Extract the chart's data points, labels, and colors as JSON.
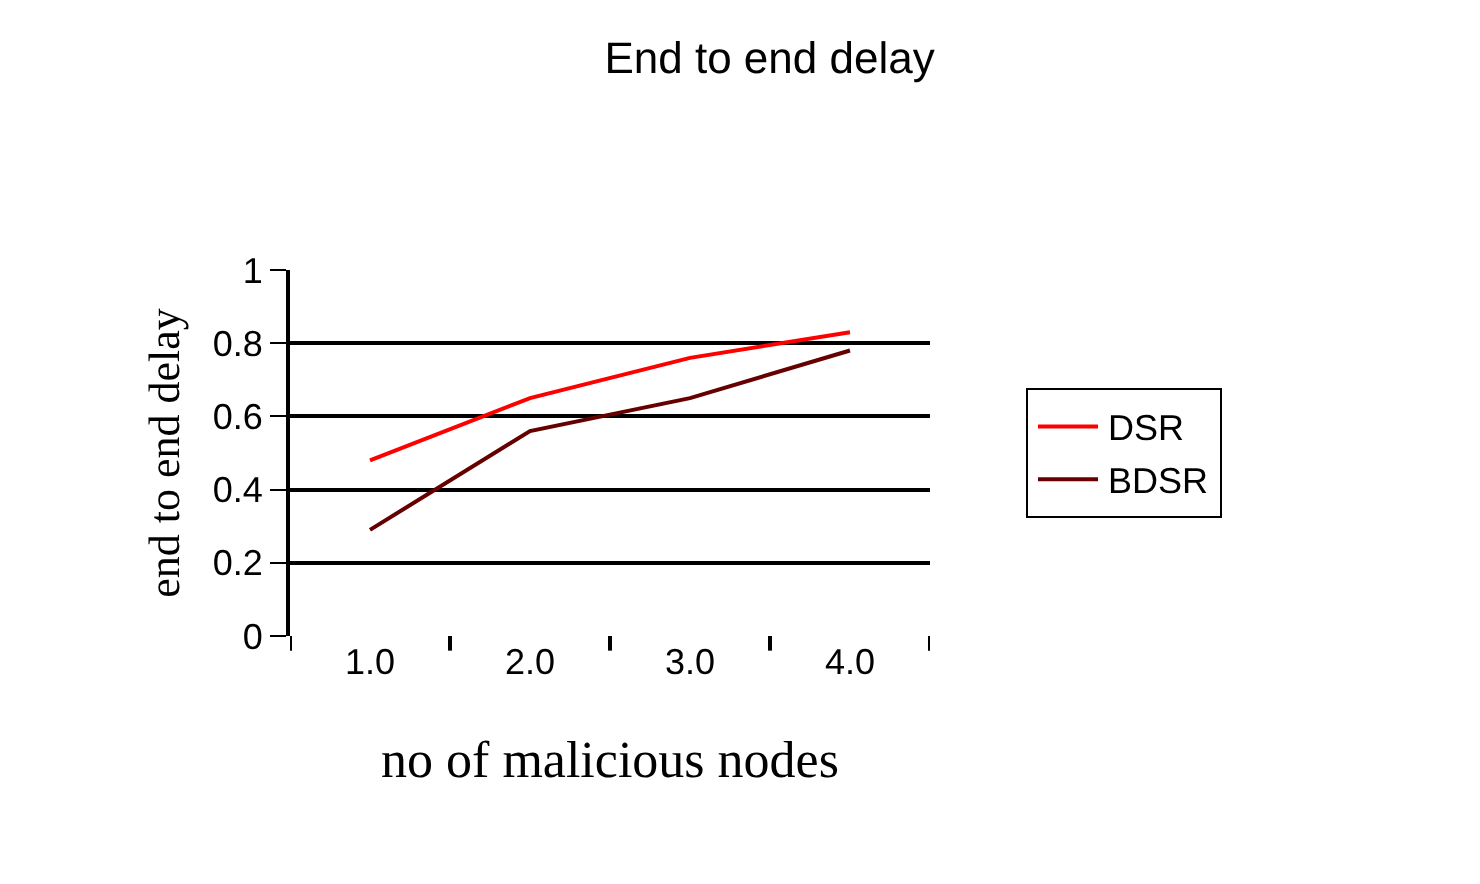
{
  "chart_data": {
    "type": "line",
    "title": "End to end delay",
    "xlabel": "no of malicious nodes",
    "ylabel": "end to end delay",
    "categories": [
      "1.0",
      "2.0",
      "3.0",
      "4.0"
    ],
    "series": [
      {
        "name": "DSR",
        "color": "#ff0000",
        "values": [
          0.48,
          0.65,
          0.76,
          0.83
        ]
      },
      {
        "name": "BDSR",
        "color": "#660000",
        "values": [
          0.29,
          0.56,
          0.65,
          0.78
        ]
      }
    ],
    "ylim": [
      0,
      1
    ],
    "yticks": [
      0,
      {
        "value": 0.2,
        "label": "0.2"
      },
      {
        "value": 0.4,
        "label": "0.4"
      },
      {
        "value": 0.6,
        "label": "0.6"
      },
      {
        "value": 0.8,
        "label": "0.8"
      },
      1
    ],
    "grid": "y",
    "legend": "right",
    "marker": "none",
    "line_style": "solid"
  }
}
